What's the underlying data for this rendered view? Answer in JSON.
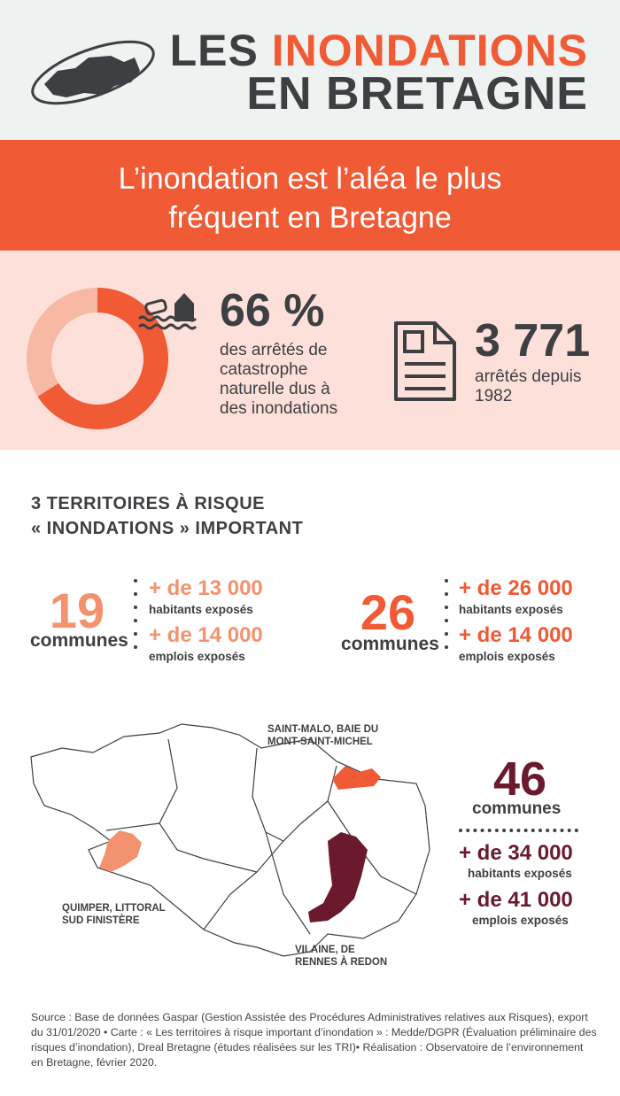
{
  "header": {
    "title_part1": "LES ",
    "title_highlight": "INONDATIONS",
    "title_line2": "EN BRETAGNE"
  },
  "banner": {
    "line1": "L’inondation est l’aléa le plus",
    "line2": "fréquent en Bretagne"
  },
  "stats_top": {
    "donut_percent": 66,
    "percent_label": "66 %",
    "percent_desc": [
      "des arrêtés de",
      "catastrophe",
      "naturelle dus à",
      "des inondations"
    ],
    "count_label": "3 771",
    "count_desc": [
      "arrêtés depuis",
      "1982"
    ]
  },
  "colors": {
    "accent": "#f05a35",
    "light_accent": "#f7b8a4",
    "pink_bg": "#fde0d9",
    "salmon": "#f3926e",
    "burgundy": "#6b1a2e",
    "dark": "#3d3f42"
  },
  "territories": {
    "heading_line1": "3 TERRITOIRES À RISQUE",
    "heading_line2": "« INONDATIONS » IMPORTANT",
    "items": [
      {
        "communes": "19",
        "communes_label": "communes",
        "habitants": "+ de 13 000",
        "habitants_label": "habitants exposés",
        "emplois": "+ de 14 000",
        "emplois_label": "emplois exposés",
        "map_label": [
          "QUIMPER, LITTORAL",
          "SUD FINISTÈRE"
        ]
      },
      {
        "communes": "26",
        "communes_label": "communes",
        "habitants": "+ de 26 000",
        "habitants_label": "habitants exposés",
        "emplois": "+ de 14 000",
        "emplois_label": "emplois exposés",
        "map_label": [
          "SAINT-MALO, BAIE DU",
          "MONT-SAINT-MICHEL"
        ]
      },
      {
        "communes": "46",
        "communes_label": "communes",
        "habitants": "+ de 34 000",
        "habitants_label": "habitants exposés",
        "emplois": "+ de 41 000",
        "emplois_label": "emplois exposés",
        "map_label": [
          "VILAINE, DE",
          "RENNES À REDON"
        ]
      }
    ]
  },
  "source": "Source : Base de données Gaspar (Gestion Assistée des Procédures Administratives relatives aux Risques), export du 31/01/2020 • Carte : « Les territoires à risque important d’inondation » : Medde/DGPR (Évaluation préliminaire des risques d’inondation), Dreal Bretagne (études réalisées sur les TRI)• Réalisation : Observatoire de l’environnement en Bretagne, février 2020."
}
